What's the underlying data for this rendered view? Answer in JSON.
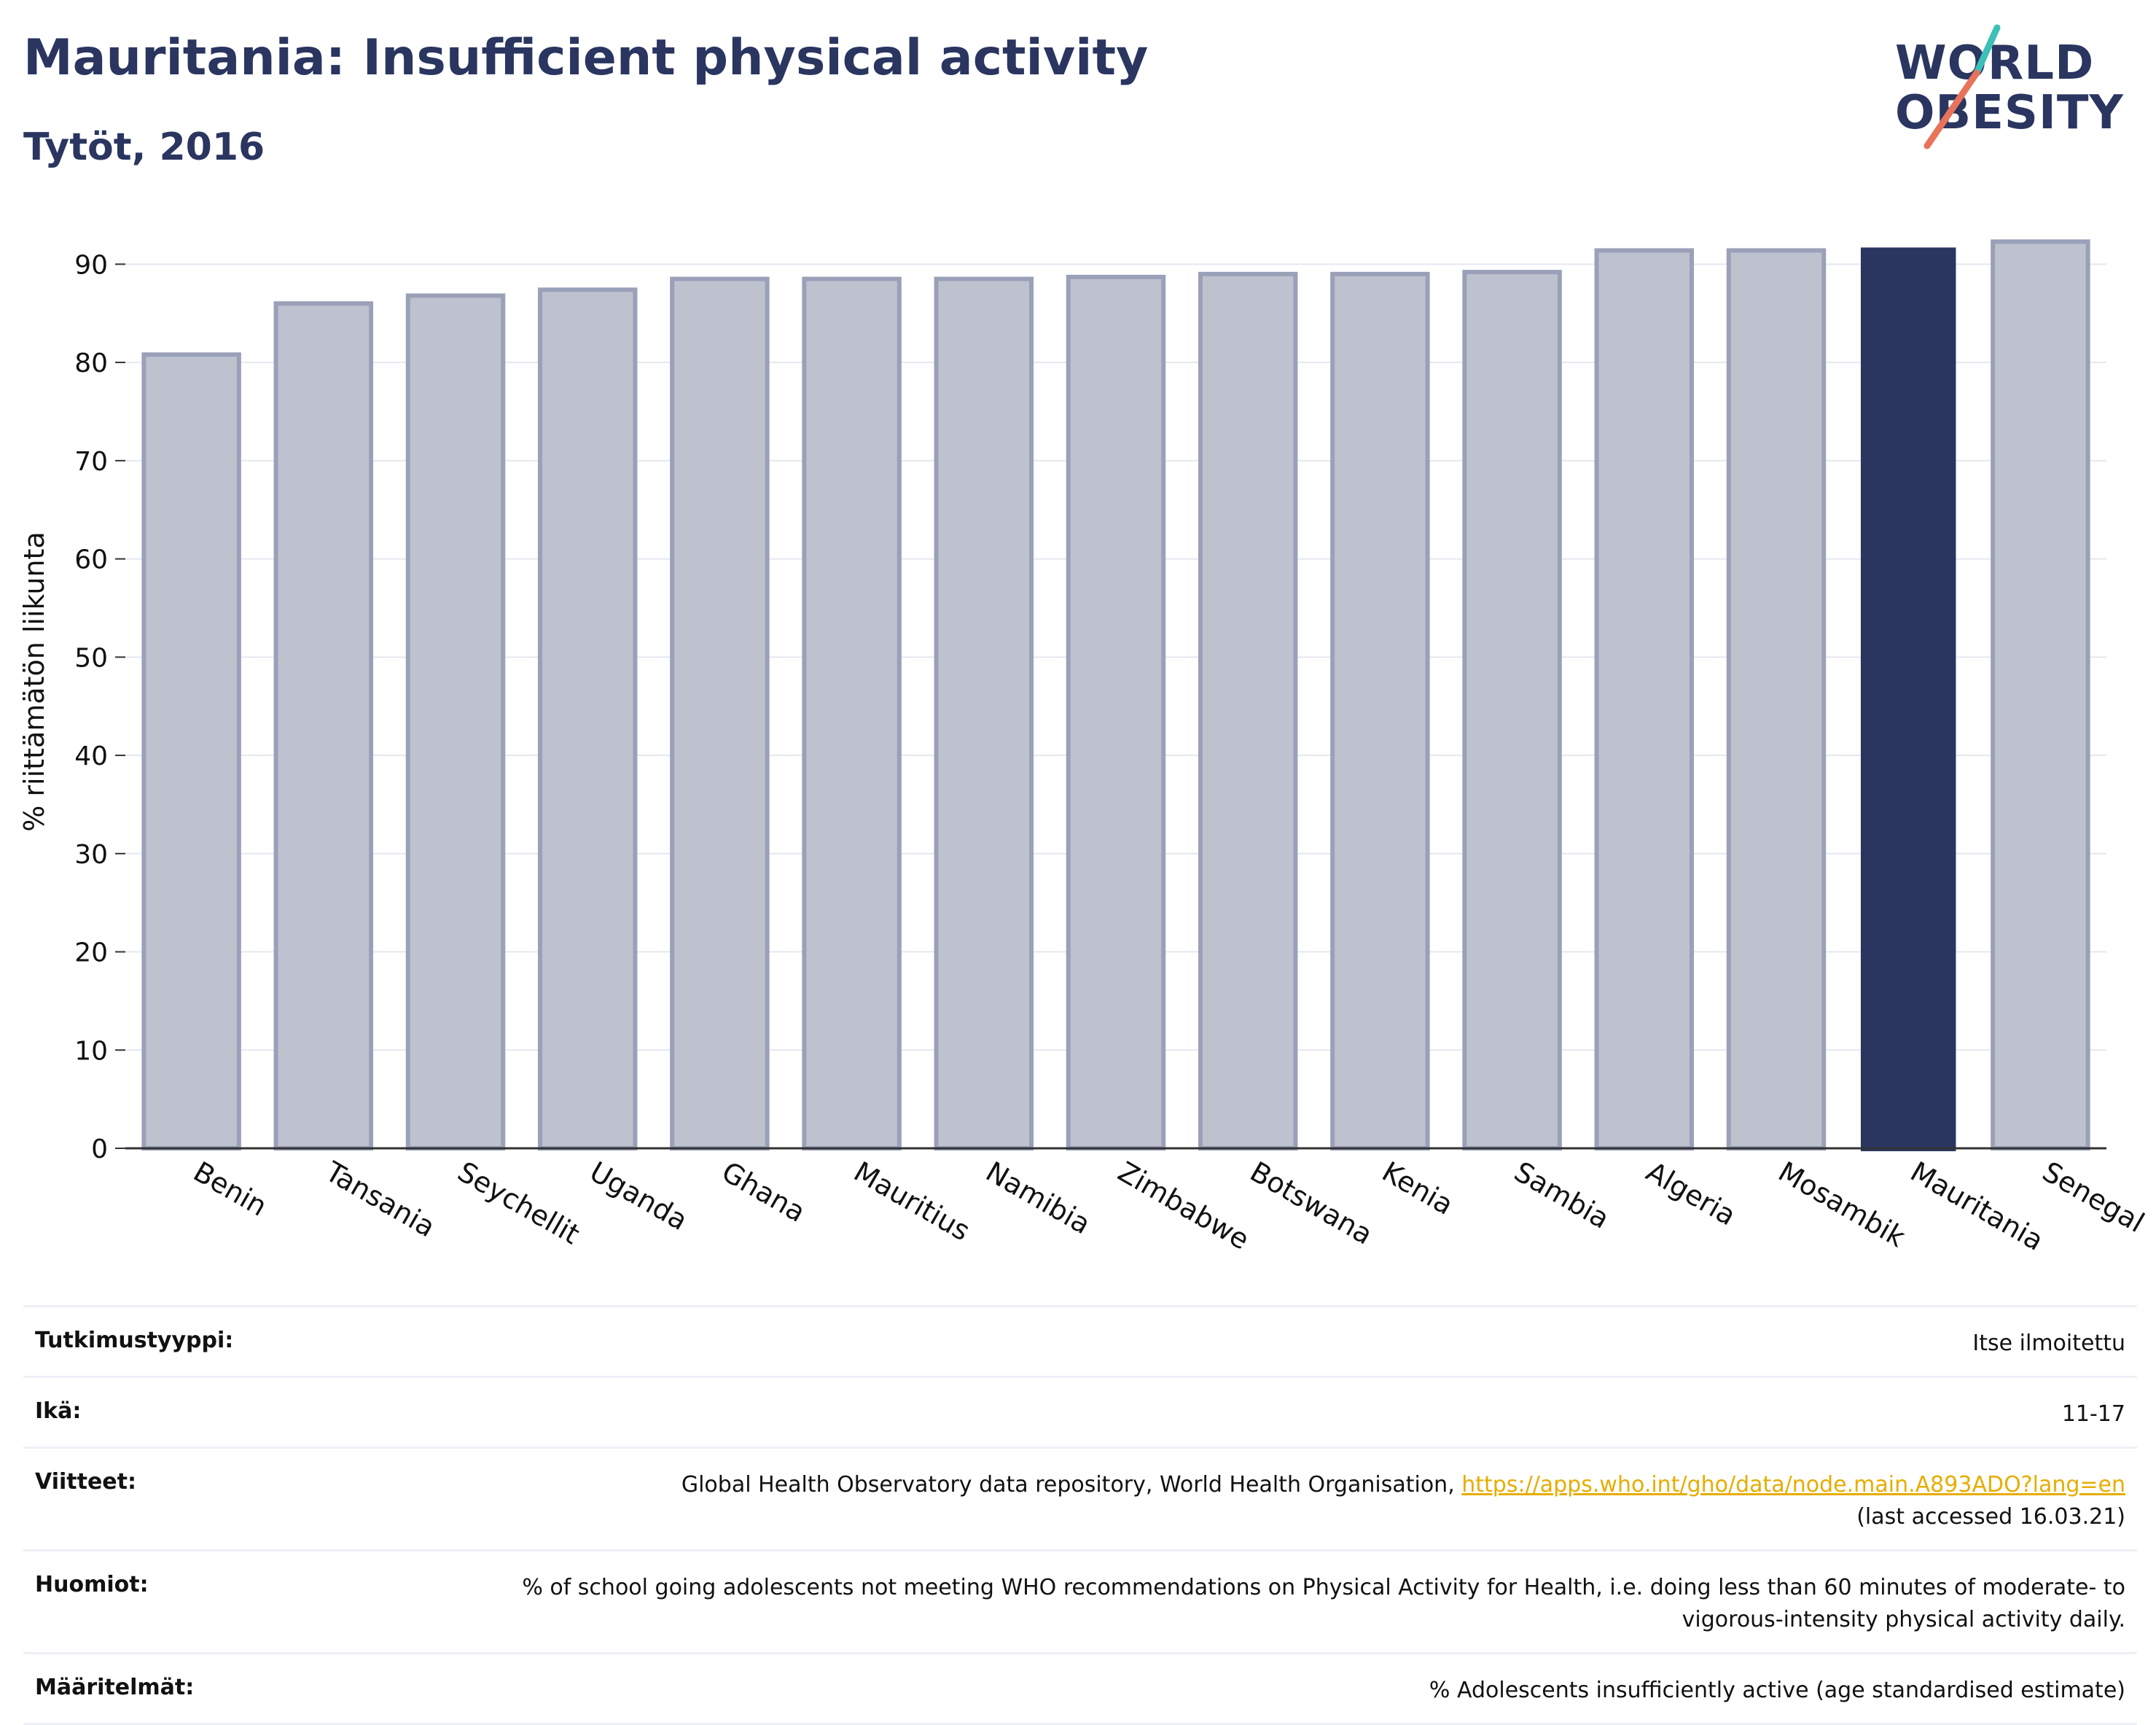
{
  "header": {
    "title": "Mauritania: Insufficient physical activity",
    "subtitle": "Tytöt, 2016"
  },
  "logo": {
    "line1": "WORLD",
    "line2": "OBESITY",
    "text_color": "#2a3560",
    "slash_colors": [
      "#3dbfb8",
      "#e8735a"
    ]
  },
  "chart_data": {
    "type": "bar",
    "categories": [
      "Benin",
      "Tansania",
      "Seychellit",
      "Uganda",
      "Ghana",
      "Mauritius",
      "Namibia",
      "Zimbabwe",
      "Botswana",
      "Kenia",
      "Sambia",
      "Algeria",
      "Mosambik",
      "Mauritania",
      "Senegal"
    ],
    "values": [
      80.8,
      86.0,
      86.8,
      87.4,
      88.5,
      88.5,
      88.5,
      88.7,
      89.0,
      89.0,
      89.2,
      91.4,
      91.4,
      91.7,
      92.3
    ],
    "highlight": "Mauritania",
    "ylabel": "% riittämätön liikunta",
    "ylim": [
      0,
      95
    ],
    "yticks": [
      0,
      10,
      20,
      30,
      40,
      50,
      60,
      70,
      80,
      90
    ],
    "grid": true,
    "colors": {
      "bar": "#bec2cf",
      "bar_edge": "#9aa0b8",
      "highlight": "#2a3560"
    }
  },
  "info": {
    "rows": [
      {
        "label": "Tutkimustyyppi:",
        "value": "Itse ilmoitettu"
      },
      {
        "label": "Ikä:",
        "value": "11-17"
      },
      {
        "label": "Viitteet:",
        "value": "Global Health Observatory data repository, World Health Organisation, ",
        "link": "https://apps.who.int/gho/data/node.main.A893ADO?lang=en",
        "suffix": "(last accessed 16.03.21)"
      },
      {
        "label": "Huomiot:",
        "value": "% of school going adolescents not meeting WHO recommendations on Physical Activity for Health, i.e. doing less than 60 minutes of moderate- to vigorous-intensity physical activity daily."
      },
      {
        "label": "Määritelmät:",
        "value": "% Adolescents insufficiently active (age standardised estimate)"
      }
    ]
  }
}
